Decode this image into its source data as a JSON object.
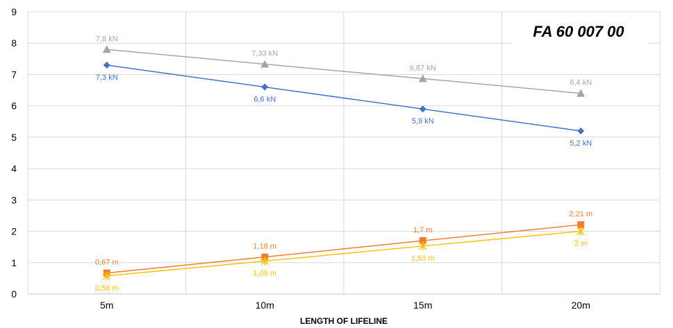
{
  "chart_data": {
    "type": "line",
    "title": "FA 60 007 00",
    "xlabel": "LENGTH OF LIFELINE",
    "ylabel": "",
    "categories": [
      "5m",
      "10m",
      "15m",
      "20m"
    ],
    "ylim": [
      0,
      9
    ],
    "yticks": [
      "0",
      "1",
      "2",
      "3",
      "4",
      "5",
      "6",
      "7",
      "8",
      "9"
    ],
    "grid": true,
    "legend": "none",
    "series": [
      {
        "values": [
          7.8,
          7.33,
          6.87,
          6.4
        ],
        "labels": [
          "7,8 kN",
          "7,33 kN",
          "6,87 kN",
          "6,4 kN"
        ],
        "color": "#A5A5A5",
        "marker": "triangle",
        "label_position": "above"
      },
      {
        "values": [
          7.3,
          6.6,
          5.9,
          5.2
        ],
        "labels": [
          "7,3 kN",
          "6,6 kN",
          "5,9 kN",
          "5,2 kN"
        ],
        "color": "#4472C4",
        "marker": "diamond",
        "label_position": "below"
      },
      {
        "values": [
          0.67,
          1.18,
          1.7,
          2.21
        ],
        "labels": [
          "0,67 m",
          "1,18 m",
          "1,7 m",
          "2,21 m"
        ],
        "color": "#ED7D31",
        "marker": "square",
        "label_position": "above"
      },
      {
        "values": [
          0.58,
          1.05,
          1.53,
          2.0
        ],
        "labels": [
          "0,58 m",
          "1,05 m",
          "1,53 m",
          "2 m"
        ],
        "color": "#FFC000",
        "marker": "star",
        "label_position": "below"
      }
    ]
  }
}
